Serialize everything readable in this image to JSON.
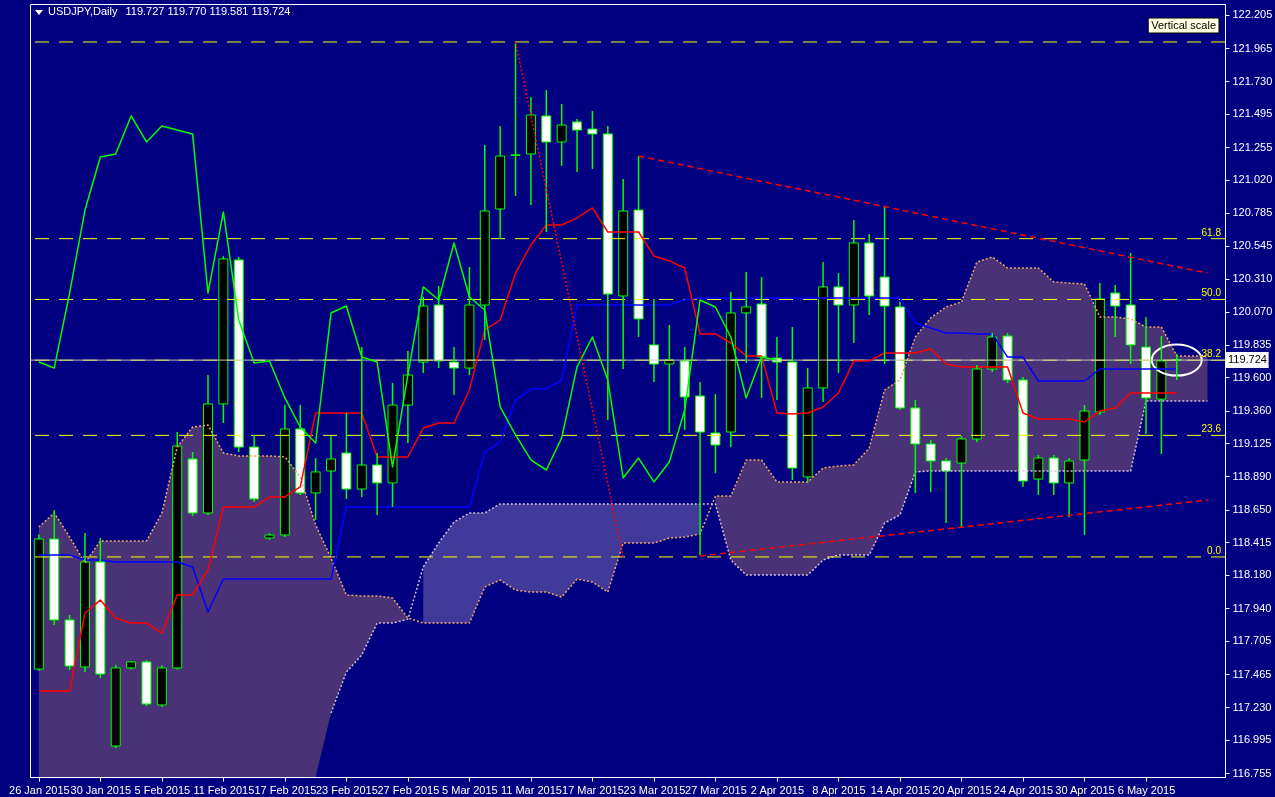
{
  "chart_data": {
    "type": "candlestick",
    "title": "USDJPY,Daily",
    "subtitle": "119.727 119.770 119.581 119.724",
    "annotations": [
      "Vertical scale",
      {
        "text": "61.8",
        "y": 120.597
      },
      {
        "text": "50.0",
        "y": 120.16
      },
      {
        "text": "38.2",
        "y": 119.723
      },
      {
        "text": "23.6",
        "y": 119.183
      },
      {
        "text": "0.0",
        "y": 118.309
      }
    ],
    "categories": [
      "26 Jan 2015",
      null,
      null,
      null,
      "30 Jan 2015",
      null,
      null,
      null,
      "5 Feb 2015",
      null,
      null,
      null,
      "11 Feb 2015",
      null,
      null,
      null,
      "17 Feb 2015",
      null,
      null,
      null,
      "23 Feb 2015",
      null,
      null,
      null,
      "27 Feb 2015",
      null,
      null,
      null,
      "5 Mar 2015",
      null,
      null,
      null,
      "11 Mar 2015",
      null,
      null,
      null,
      "17 Mar 2015",
      null,
      null,
      null,
      "23 Mar 2015",
      null,
      null,
      null,
      "27 Mar 2015",
      null,
      null,
      null,
      "2 Apr 2015",
      null,
      null,
      null,
      "8 Apr 2015",
      null,
      null,
      null,
      "14 Apr 2015",
      null,
      null,
      null,
      "20 Apr 2015",
      null,
      null,
      null,
      "24 Apr 2015",
      null,
      null,
      null,
      "30 Apr 2015",
      null,
      null,
      null,
      "6 May 2015",
      null,
      null,
      null,
      null
    ],
    "ohlc": [
      [
        117.503,
        118.47,
        117.49,
        118.438
      ],
      [
        118.438,
        118.647,
        117.82,
        117.856
      ],
      [
        117.856,
        117.892,
        117.496,
        117.525
      ],
      [
        117.518,
        118.481,
        117.482,
        118.273
      ],
      [
        118.273,
        118.445,
        117.438,
        117.467
      ],
      [
        116.95,
        117.532,
        116.935,
        117.511
      ],
      [
        117.511,
        117.56,
        117.5,
        117.554
      ],
      [
        117.554,
        117.568,
        117.237,
        117.252
      ],
      [
        117.245,
        117.53,
        117.23,
        117.511
      ],
      [
        117.511,
        119.207,
        117.5,
        119.107
      ],
      [
        119.013,
        119.063,
        118.603,
        118.625
      ],
      [
        118.625,
        119.617,
        118.61,
        119.409
      ],
      [
        119.409,
        120.472,
        119.272,
        120.451
      ],
      [
        120.444,
        120.465,
        119.063,
        119.099
      ],
      [
        119.099,
        119.186,
        118.704,
        118.726
      ],
      [
        118.445,
        118.48,
        118.43,
        118.467
      ],
      [
        118.467,
        119.401,
        118.452,
        119.229
      ],
      [
        119.229,
        119.401,
        118.754,
        118.769
      ],
      [
        118.769,
        119.02,
        118.575,
        118.92
      ],
      [
        118.927,
        119.179,
        118.323,
        119.013
      ],
      [
        119.056,
        119.344,
        118.726,
        118.797
      ],
      [
        118.797,
        119.818,
        118.74,
        118.97
      ],
      [
        118.97,
        119.056,
        118.611,
        118.841
      ],
      [
        118.841,
        119.56,
        118.668,
        119.401
      ],
      [
        119.401,
        119.789,
        119.128,
        119.617
      ],
      [
        119.71,
        120.178,
        119.631,
        120.113
      ],
      [
        120.12,
        120.257,
        119.667,
        119.718
      ],
      [
        119.71,
        119.818,
        119.473,
        119.667
      ],
      [
        119.667,
        120.393,
        119.617,
        120.12
      ],
      [
        120.12,
        121.27,
        119.869,
        120.796
      ],
      [
        120.81,
        121.407,
        120.595,
        121.191
      ],
      [
        121.195,
        122.011,
        120.904,
        121.2
      ],
      [
        121.206,
        121.616,
        120.839,
        121.486
      ],
      [
        121.479,
        121.666,
        120.645,
        121.292
      ],
      [
        121.292,
        121.565,
        121.119,
        121.414
      ],
      [
        121.436,
        121.457,
        121.076,
        121.378
      ],
      [
        121.385,
        121.515,
        121.098,
        121.35
      ],
      [
        121.35,
        121.407,
        119.293,
        120.199
      ],
      [
        120.185,
        121.026,
        119.66,
        120.796
      ],
      [
        120.803,
        121.191,
        119.89,
        120.02
      ],
      [
        119.833,
        120.163,
        119.567,
        119.696
      ],
      [
        119.696,
        119.976,
        119.2,
        119.725
      ],
      [
        119.718,
        119.818,
        119.222,
        119.459
      ],
      [
        119.466,
        119.567,
        118.323,
        119.207
      ],
      [
        119.2,
        119.48,
        118.912,
        119.114
      ],
      [
        119.207,
        120.214,
        119.099,
        120.063
      ],
      [
        120.063,
        120.358,
        119.703,
        120.106
      ],
      [
        120.127,
        120.321,
        119.452,
        119.746
      ],
      [
        119.739,
        119.89,
        119.437,
        119.71
      ],
      [
        119.71,
        119.962,
        118.862,
        118.948
      ],
      [
        118.884,
        119.667,
        118.848,
        119.524
      ],
      [
        119.524,
        120.429,
        119.423,
        120.25
      ],
      [
        120.25,
        120.35,
        119.631,
        120.12
      ],
      [
        120.12,
        120.731,
        119.847,
        120.566
      ],
      [
        120.566,
        120.631,
        120.048,
        120.185
      ],
      [
        120.321,
        120.832,
        119.696,
        120.113
      ],
      [
        120.106,
        120.142,
        119.365,
        119.38
      ],
      [
        119.38,
        119.437,
        118.769,
        119.121
      ],
      [
        119.121,
        119.15,
        118.776,
        118.999
      ],
      [
        118.999,
        119.02,
        118.553,
        118.927
      ],
      [
        118.984,
        119.179,
        118.517,
        119.157
      ],
      [
        119.157,
        119.689,
        119.135,
        119.66
      ],
      [
        119.66,
        119.919,
        119.638,
        119.89
      ],
      [
        119.897,
        119.919,
        119.56,
        119.581
      ],
      [
        119.581,
        119.603,
        118.812,
        118.855
      ],
      [
        118.869,
        119.042,
        118.754,
        119.02
      ],
      [
        119.02,
        119.042,
        118.754,
        118.841
      ],
      [
        118.841,
        119.02,
        118.596,
        118.999
      ],
      [
        119.006,
        119.401,
        118.467,
        119.358
      ],
      [
        119.351,
        120.278,
        119.329,
        120.163
      ],
      [
        120.206,
        120.264,
        119.89,
        120.113
      ],
      [
        120.12,
        120.494,
        119.696,
        119.833
      ],
      [
        119.818,
        120.034,
        119.193,
        119.452
      ],
      [
        119.444,
        119.897,
        119.049,
        119.718
      ],
      [
        119.727,
        119.77,
        119.581,
        119.724
      ],
      null,
      null
    ],
    "series": [
      {
        "type": "line",
        "color": "#f4a460",
        "line_style": "dotted",
        "lower": [
          116.727,
          116.727,
          116.727,
          116.727,
          116.727,
          116.727,
          116.727,
          116.727,
          116.727,
          116.727,
          116.727,
          116.727,
          116.727,
          116.727,
          116.727,
          116.727,
          116.727,
          116.727,
          116.727,
          117.187,
          117.482,
          117.604,
          117.834,
          117.834,
          117.862,
          null,
          null,
          null,
          null,
          null,
          null,
          null,
          null,
          null,
          null,
          null,
          null,
          null,
          null,
          null,
          null,
          null,
          null,
          null,
          118.69,
          118.287,
          118.179,
          118.179,
          118.179,
          118.179,
          118.179,
          118.287,
          118.323,
          118.323,
          118.323,
          118.553,
          118.611,
          118.92,
          118.927,
          118.927,
          118.927,
          118.927,
          118.927,
          118.927,
          118.927,
          118.927,
          118.927,
          118.927,
          118.927,
          118.927,
          118.927,
          118.927,
          119.43,
          119.43,
          119.43,
          119.43,
          119.43
        ],
        "upper": [
          118.524,
          118.625,
          118.452,
          118.265,
          118.424,
          118.424,
          118.424,
          118.424,
          118.625,
          119.099,
          119.243,
          119.257,
          119.056,
          119.035,
          119.035,
          119.035,
          119.028,
          118.884,
          118.539,
          118.301,
          118.035,
          118.028,
          118.028,
          118.014,
          117.87,
          null,
          null,
          null,
          null,
          null,
          null,
          null,
          null,
          null,
          null,
          null,
          null,
          null,
          null,
          null,
          null,
          null,
          null,
          null,
          118.747,
          118.747,
          119.006,
          119.006,
          118.848,
          118.848,
          118.848,
          118.948,
          118.963,
          118.97,
          119.092,
          119.509,
          119.581,
          119.89,
          120.027,
          120.106,
          120.142,
          120.429,
          120.465,
          120.386,
          120.386,
          120.386,
          120.286,
          120.278,
          120.271,
          120.034,
          120.034,
          120.02,
          119.962,
          119.962,
          119.754,
          119.754,
          119.754
        ],
        "values": [
          118.524,
          118.625,
          118.452,
          118.265,
          118.424,
          118.424,
          118.424,
          118.424,
          118.625,
          119.099,
          119.243,
          119.257,
          119.056,
          119.035,
          119.035,
          119.035,
          119.028,
          118.884,
          118.539,
          118.301,
          118.035,
          118.028,
          118.028,
          118.014,
          117.87,
          117.834,
          117.834,
          117.834,
          117.834,
          118.093,
          118.143,
          118.071,
          118.057,
          118.057,
          118.021,
          118.15,
          118.129,
          118.057,
          118.409,
          118.409,
          118.409,
          118.445,
          118.452,
          118.474,
          118.747,
          118.747,
          119.006,
          119.006,
          118.848,
          118.848,
          118.848,
          118.948,
          118.963,
          118.97,
          119.092,
          119.509,
          119.581,
          119.89,
          120.027,
          120.106,
          120.142,
          120.429,
          120.465,
          120.386,
          120.386,
          120.386,
          120.286,
          120.278,
          120.271,
          120.034,
          120.034,
          120.02,
          119.962,
          119.962,
          119.754,
          119.754,
          119.754
        ]
      },
      {
        "type": "line",
        "color": "#d8bfd8",
        "line_style": "dotted",
        "lower": [
          null,
          null,
          null,
          null,
          null,
          null,
          null,
          null,
          null,
          null,
          null,
          null,
          null,
          null,
          null,
          null,
          null,
          null,
          null,
          null,
          null,
          null,
          null,
          null,
          null,
          117.834,
          117.834,
          117.834,
          117.834,
          118.093,
          118.143,
          118.071,
          118.057,
          118.057,
          118.021,
          118.15,
          118.129,
          118.057,
          118.409,
          118.409,
          118.409,
          118.445,
          118.452,
          118.474,
          null,
          null,
          null,
          null,
          null,
          null,
          null,
          null,
          null,
          null,
          null,
          null,
          null,
          null,
          null,
          null,
          null,
          null,
          null,
          null,
          null,
          null,
          null,
          null,
          null,
          null,
          null,
          null,
          null,
          null,
          null,
          null,
          null
        ],
        "upper": [
          null,
          null,
          null,
          null,
          null,
          null,
          null,
          null,
          null,
          null,
          null,
          null,
          null,
          null,
          null,
          null,
          null,
          null,
          null,
          null,
          null,
          null,
          null,
          null,
          null,
          118.237,
          118.409,
          118.56,
          118.625,
          118.625,
          118.69,
          118.69,
          118.69,
          118.69,
          118.69,
          118.69,
          118.69,
          118.69,
          118.69,
          118.69,
          118.69,
          118.69,
          118.69,
          118.69,
          null,
          null,
          null,
          null,
          null,
          null,
          null,
          null,
          null,
          null,
          null,
          null,
          null,
          null,
          null,
          null,
          null,
          null,
          null,
          null,
          null,
          null,
          null,
          null,
          null,
          null,
          null,
          null,
          null,
          null,
          null,
          null,
          null
        ],
        "values": [
          null,
          null,
          null,
          null,
          null,
          null,
          null,
          null,
          null,
          null,
          null,
          null,
          null,
          null,
          null,
          null,
          null,
          null,
          null,
          117.187,
          117.482,
          117.604,
          117.834,
          117.834,
          117.862,
          118.237,
          118.409,
          118.56,
          118.625,
          118.625,
          118.69,
          118.69,
          118.69,
          118.69,
          118.69,
          118.69,
          118.69,
          118.69,
          118.69,
          118.69,
          118.69,
          118.69,
          118.69,
          118.69,
          118.69,
          118.287,
          118.179,
          118.179,
          118.179,
          118.179,
          118.179,
          118.287,
          118.323,
          118.323,
          118.323,
          118.553,
          118.611,
          118.92,
          118.927,
          118.927,
          118.927,
          118.927,
          118.927,
          118.927,
          118.927,
          118.927,
          118.927,
          118.927,
          118.927,
          118.927,
          118.927,
          118.927,
          119.43,
          119.43,
          119.43,
          119.43,
          119.43
        ]
      },
      {
        "type": "line",
        "color": "#0000ff",
        "values": [
          118.323,
          118.323,
          118.323,
          118.287,
          118.287,
          118.273,
          118.273,
          118.273,
          118.273,
          118.273,
          118.237,
          117.913,
          118.15,
          118.15,
          118.15,
          118.15,
          118.15,
          118.15,
          118.15,
          118.15,
          118.668,
          118.668,
          118.668,
          118.668,
          118.668,
          118.668,
          118.668,
          118.668,
          118.668,
          119.063,
          119.135,
          119.437,
          119.516,
          119.516,
          119.581,
          120.12,
          120.12,
          120.12,
          120.12,
          120.12,
          120.12,
          120.12,
          120.156,
          120.171,
          120.171,
          120.171,
          120.171,
          120.171,
          120.171,
          120.171,
          120.171,
          120.171,
          120.171,
          120.171,
          120.171,
          120.171,
          120.171,
          119.991,
          119.955,
          119.919,
          119.919,
          119.912,
          119.912,
          119.746,
          119.746,
          119.574,
          119.574,
          119.574,
          119.574,
          119.66,
          119.66,
          119.66,
          119.66,
          119.66,
          119.66,
          null,
          null
        ]
      },
      {
        "type": "line",
        "color": "#ff0000",
        "values": [
          117.345,
          117.345,
          117.345,
          117.906,
          117.999,
          117.87,
          117.834,
          117.834,
          117.762,
          118.035,
          118.035,
          118.215,
          118.668,
          118.668,
          118.668,
          118.74,
          118.74,
          118.812,
          119.344,
          119.344,
          119.344,
          119.344,
          119.028,
          119.028,
          119.028,
          119.236,
          119.272,
          119.272,
          119.509,
          119.941,
          120.012,
          120.35,
          120.552,
          120.695,
          120.695,
          120.746,
          120.818,
          120.645,
          120.645,
          120.645,
          120.473,
          120.437,
          120.386,
          119.912,
          119.912,
          119.847,
          119.754,
          119.754,
          119.344,
          119.337,
          119.344,
          119.387,
          119.488,
          119.718,
          119.718,
          119.775,
          119.775,
          119.775,
          119.804,
          119.696,
          119.675,
          119.675,
          119.675,
          119.675,
          119.344,
          119.301,
          119.301,
          119.301,
          119.279,
          119.358,
          119.38,
          119.488,
          119.488,
          119.488,
          119.488,
          null,
          null
        ]
      },
      {
        "type": "line",
        "color": "#00ff00",
        "values": [
          119.71,
          119.667,
          120.206,
          120.803,
          121.184,
          121.206,
          121.479,
          121.292,
          121.407,
          121.378,
          121.35,
          120.206,
          120.789,
          120.012,
          119.703,
          119.718,
          119.452,
          119.243,
          119.128,
          120.063,
          120.113,
          119.746,
          119.71,
          118.956,
          119.617,
          120.25,
          120.156,
          120.566,
          120.178,
          120.084,
          119.387,
          119.186,
          119.006,
          118.934,
          119.164,
          119.675,
          119.89,
          119.581,
          118.877,
          119.02,
          118.848,
          118.992,
          119.365,
          120.156,
          120.106,
          119.89,
          119.452,
          119.746,
          119.724,
          null,
          null,
          null,
          null,
          null,
          null,
          null,
          null,
          null,
          null,
          null,
          null,
          null,
          null,
          null,
          null,
          null,
          null,
          null,
          null,
          null,
          null,
          null,
          null,
          null,
          null,
          null,
          null
        ]
      },
      {
        "type": "line",
        "color": "#ff0000",
        "line_style": "dotted",
        "values": [
          null,
          null,
          null,
          null,
          null,
          null,
          null,
          null,
          null,
          null,
          null,
          null,
          null,
          null,
          null,
          null,
          null,
          null,
          null,
          null,
          null,
          null,
          null,
          null,
          null,
          null,
          null,
          null,
          null,
          null,
          null,
          122.011,
          null,
          null,
          null,
          null,
          null,
          null,
          118.309,
          null,
          null,
          null,
          null,
          null,
          null,
          null,
          null,
          null,
          null,
          null,
          null,
          null,
          null,
          null,
          null,
          null,
          null,
          null,
          null,
          null,
          null,
          null,
          null,
          null,
          null,
          null,
          null,
          null,
          null,
          null,
          null,
          null,
          null,
          null,
          null,
          null,
          null
        ]
      },
      {
        "type": "line",
        "color": "#ff0000",
        "line_style": "dashed",
        "values": [
          null,
          null,
          null,
          null,
          null,
          null,
          null,
          null,
          null,
          null,
          null,
          null,
          null,
          null,
          null,
          null,
          null,
          null,
          null,
          null,
          null,
          null,
          null,
          null,
          null,
          null,
          null,
          null,
          null,
          null,
          null,
          null,
          null,
          null,
          null,
          null,
          null,
          null,
          null,
          121.191,
          null,
          null,
          null,
          null,
          null,
          null,
          null,
          null,
          null,
          null,
          null,
          null,
          null,
          null,
          null,
          null,
          null,
          null,
          null,
          null,
          null,
          null,
          null,
          null,
          null,
          null,
          null,
          null,
          null,
          null,
          null,
          null,
          null,
          null,
          null,
          null,
          120.35
        ]
      },
      {
        "type": "line",
        "color": "#ff0000",
        "line_style": "dashed",
        "values": [
          null,
          null,
          null,
          null,
          null,
          null,
          null,
          null,
          null,
          null,
          null,
          null,
          null,
          null,
          null,
          null,
          null,
          null,
          null,
          null,
          null,
          null,
          null,
          null,
          null,
          null,
          null,
          null,
          null,
          null,
          null,
          null,
          null,
          null,
          null,
          null,
          null,
          null,
          null,
          null,
          null,
          null,
          null,
          118.316,
          null,
          null,
          null,
          null,
          null,
          null,
          null,
          null,
          null,
          null,
          null,
          null,
          null,
          null,
          null,
          null,
          null,
          null,
          null,
          null,
          null,
          null,
          null,
          null,
          null,
          null,
          null,
          null,
          null,
          null,
          null,
          null,
          118.718
        ]
      }
    ],
    "ylim": [
      116.727,
      122.284
    ],
    "yticks": [
      122.205,
      121.965,
      {
        "value": 121.73,
        "label": "121.730"
      },
      121.495,
      121.255,
      {
        "value": 121.02,
        "label": "121.020"
      },
      120.785,
      120.545,
      {
        "value": 120.31,
        "label": "120.310"
      },
      {
        "value": 120.07,
        "label": "120.070"
      },
      119.835,
      {
        "value": 119.6,
        "label": "119.600"
      },
      {
        "value": 119.36,
        "label": "119.360"
      },
      119.125,
      {
        "value": 118.89,
        "label": "118.890"
      },
      {
        "value": 118.65,
        "label": "118.650"
      },
      118.415,
      {
        "value": 118.18,
        "label": "118.180"
      },
      {
        "value": 117.94,
        "label": "117.940"
      },
      117.705,
      117.465,
      {
        "value": 117.23,
        "label": "117.230"
      },
      116.995,
      116.755
    ],
    "ref_lines": [
      {
        "axis": "y",
        "value": 122.011,
        "color": "#ffff00",
        "line_style": "dashed"
      },
      {
        "axis": "y",
        "value": 120.597,
        "color": "#ffff00",
        "line_style": "dashed"
      },
      {
        "axis": "y",
        "value": 120.16,
        "color": "#ffff00",
        "line_style": "dashed"
      },
      {
        "axis": "y",
        "value": 119.723,
        "color": "#ffff00",
        "line_style": "dashed"
      },
      {
        "axis": "y",
        "value": 119.183,
        "color": "#ffff00",
        "line_style": "dashed"
      },
      {
        "axis": "y",
        "value": 118.309,
        "color": "#ffff00",
        "line_style": "dashed"
      },
      {
        "axis": "y",
        "value": 119.724,
        "label": "119.724",
        "color": "#c0c0c0",
        "line_style": "solid"
      }
    ]
  }
}
